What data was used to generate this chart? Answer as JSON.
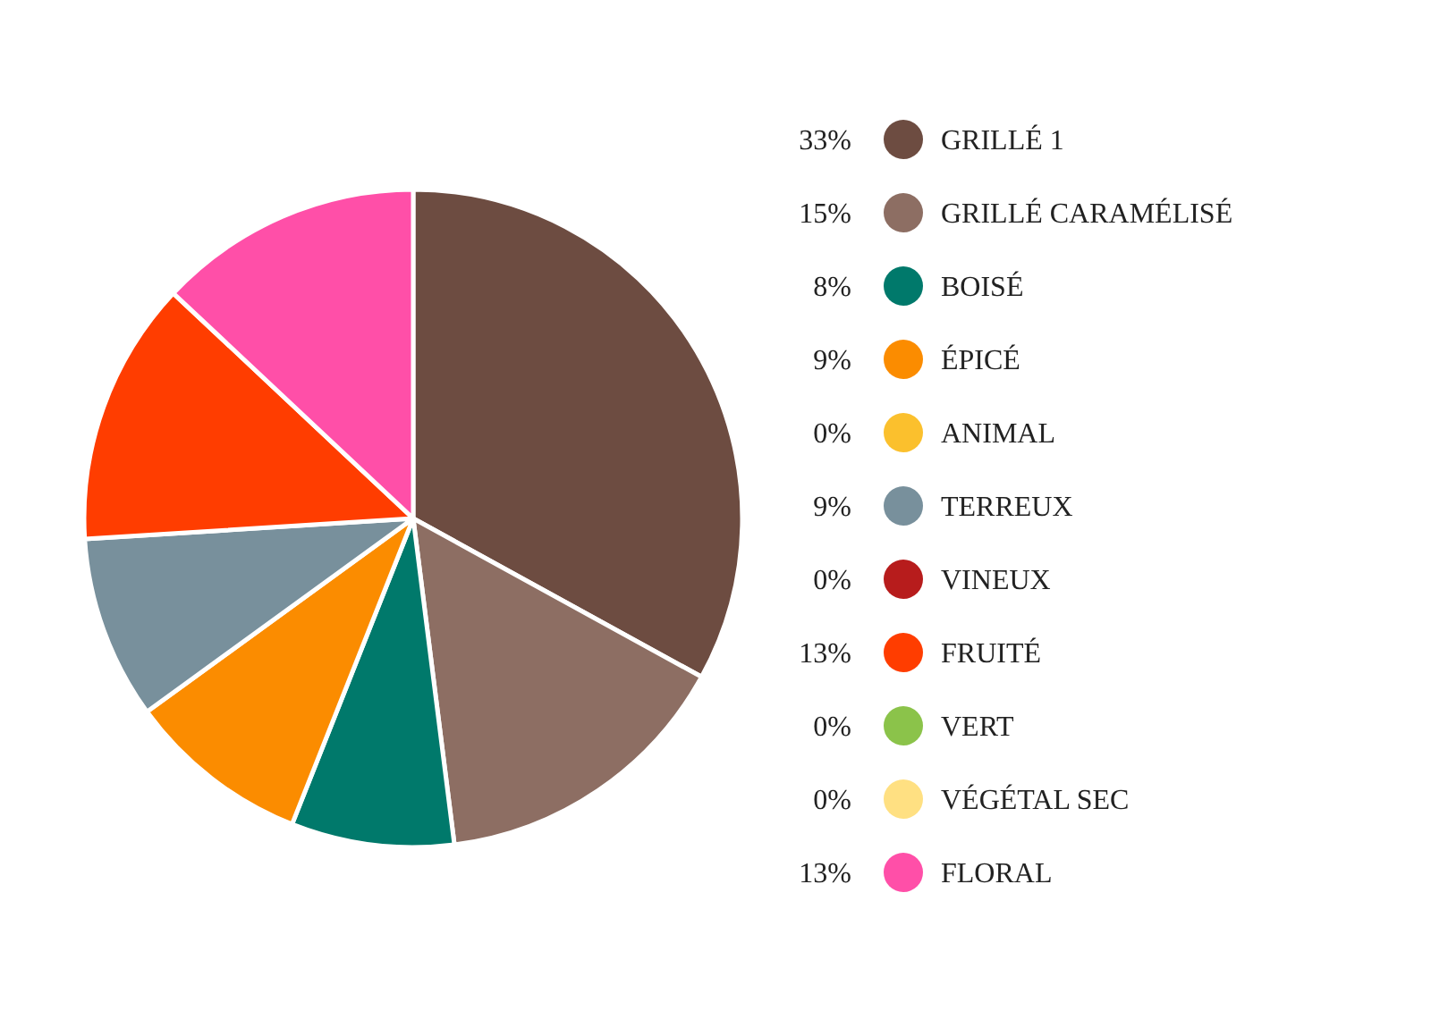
{
  "chart_data": {
    "type": "pie",
    "categories": [
      "GRILLÉ 1",
      "GRILLÉ CARAMÉLISÉ",
      "BOISÉ",
      "ÉPICÉ",
      "ANIMAL",
      "TERREUX",
      "VINEUX",
      "FRUITÉ",
      "VERT",
      "VÉGÉTAL SEC",
      "FLORAL"
    ],
    "values": [
      33,
      15,
      8,
      9,
      0,
      9,
      0,
      13,
      0,
      0,
      13
    ],
    "colors": [
      "#6d4c41",
      "#8d6e63",
      "#00796b",
      "#fb8c00",
      "#fbc02d",
      "#78909c",
      "#b71c1c",
      "#ff3d00",
      "#8bc34a",
      "#ffe082",
      "#ff4fa8"
    ],
    "value_labels": [
      "33%",
      "15%",
      "8%",
      "9%",
      "0%",
      "9%",
      "0%",
      "13%",
      "0%",
      "0%",
      "13%"
    ],
    "legend": "right"
  }
}
